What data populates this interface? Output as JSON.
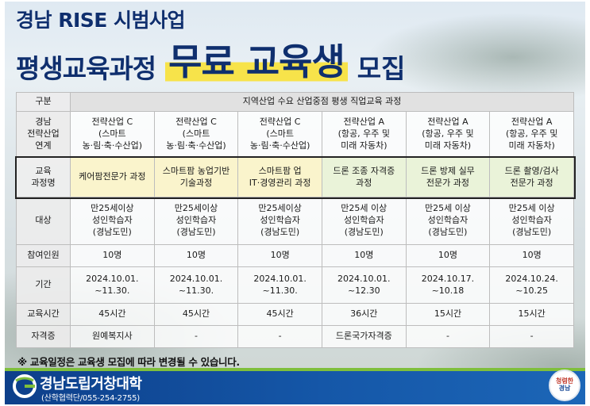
{
  "header": {
    "title_line1": "경남 RISE 시범사업",
    "title_line2_part1": "평생교육과정",
    "title_line2_part2": "무료 교육생",
    "title_line2_part3": "모집"
  },
  "table": {
    "header_label": "구분",
    "header_value": "지역산업 수요 산업중점 평생 직업교육 과정",
    "rows": {
      "industry": {
        "label": [
          "경남",
          "전략산업",
          "연계"
        ],
        "cells": [
          [
            "전략산업 C",
            "(스마트",
            "농·림·축·수산업)"
          ],
          [
            "전략산업 C",
            "(스마트",
            "농·림·축·수산업)"
          ],
          [
            "전략산업 C",
            "(스마트",
            "농·림·축·수산업)"
          ],
          [
            "전략산업 A",
            "(항공, 우주 및",
            "미래 자동차)"
          ],
          [
            "전략산업 A",
            "(항공, 우주 및",
            "미래 자동차)"
          ],
          [
            "전략산업 A",
            "(항공, 우주 및",
            "미래 자동차)"
          ]
        ]
      },
      "course": {
        "label": [
          "교육",
          "과정명"
        ],
        "cells": [
          [
            "케어팜전문가 과정"
          ],
          [
            "스마트팜 농업기반",
            "기술과정"
          ],
          [
            "스마트팜 업",
            "IT·경영관리 과정"
          ],
          [
            "드론 조종 자격증",
            "과정"
          ],
          [
            "드론 방제 실무",
            "전문가 과정"
          ],
          [
            "드론 촬영/검사",
            "전문가 과정"
          ]
        ]
      },
      "target": {
        "label": [
          "대상"
        ],
        "cells": [
          [
            "만25세이상",
            "성인학습자",
            "(경남도민)"
          ],
          [
            "만25세이상",
            "성인학습자",
            "(경남도민)"
          ],
          [
            "만25세이상",
            "성인학습자",
            "(경남도민)"
          ],
          [
            "만25세 이상",
            "성인학습자",
            "(경남도민)"
          ],
          [
            "만25세 이상",
            "성인학습자",
            "(경남도민)"
          ],
          [
            "만25세 이상",
            "성인학습자",
            "(경남도민)"
          ]
        ]
      },
      "count": {
        "label": [
          "참여인원"
        ],
        "cells": [
          [
            "10명"
          ],
          [
            "10명"
          ],
          [
            "10명"
          ],
          [
            "10명"
          ],
          [
            "10명"
          ],
          [
            "10명"
          ]
        ]
      },
      "period": {
        "label": [
          "기간"
        ],
        "cells": [
          [
            "2024.10.01.",
            "~11.30."
          ],
          [
            "2024.10.01.",
            "~11.30."
          ],
          [
            "2024.10.01.",
            "~11.30."
          ],
          [
            "2024.10.01.",
            "~12.30"
          ],
          [
            "2024.10.17.",
            "~10.18"
          ],
          [
            "2024.10.24.",
            "~10.25"
          ]
        ]
      },
      "hours": {
        "label": [
          "교육시간"
        ],
        "cells": [
          [
            "45시간"
          ],
          [
            "45시간"
          ],
          [
            "45시간"
          ],
          [
            "36시간"
          ],
          [
            "15시간"
          ],
          [
            "15시간"
          ]
        ]
      },
      "cert": {
        "label": [
          "자격증"
        ],
        "cells": [
          [
            "원예복지사"
          ],
          [
            "-"
          ],
          [
            "-"
          ],
          [
            "드론국가자격증"
          ],
          [
            "-"
          ],
          [
            "-"
          ]
        ]
      }
    }
  },
  "note": "※ 교육일정은 교육생 모집에 따라 변경될 수 있습니다.",
  "footer": {
    "university": "경남도립거창대학",
    "contact": "(산학협력단/055-254-2755)",
    "seal_line1": "청렴한",
    "seal_line2": "경남"
  },
  "colors": {
    "navy": "#0f2f6e",
    "highlight_yellow": "#f7e34a",
    "footer_blue": "#1557a8",
    "accent_green": "#7fbf3c"
  }
}
